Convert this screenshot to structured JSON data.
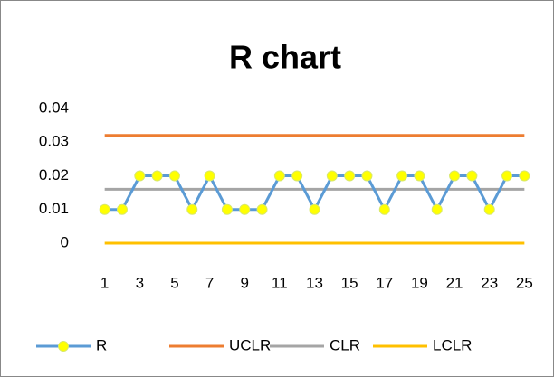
{
  "chart_data": {
    "type": "line",
    "title": "R chart",
    "categories": [
      "1",
      null,
      "3",
      null,
      "5",
      null,
      "7",
      null,
      "9",
      null,
      "11",
      null,
      "13",
      null,
      "15",
      null,
      "17",
      null,
      "19",
      null,
      "21",
      null,
      "23",
      null,
      "25"
    ],
    "series": [
      {
        "name": "R",
        "color": "#5b9bd5",
        "marker": "#ffff00",
        "values": [
          0.01,
          0.01,
          0.02,
          0.02,
          0.02,
          0.01,
          0.02,
          0.01,
          0.01,
          0.01,
          0.02,
          0.02,
          0.01,
          0.02,
          0.02,
          0.02,
          0.01,
          0.02,
          0.02,
          0.01,
          0.02,
          0.02,
          0.01,
          0.02,
          0.02
        ]
      },
      {
        "name": "UCLR",
        "color": "#ed7d31",
        "values": [
          0.032,
          0.032,
          0.032,
          0.032,
          0.032,
          0.032,
          0.032,
          0.032,
          0.032,
          0.032,
          0.032,
          0.032,
          0.032,
          0.032,
          0.032,
          0.032,
          0.032,
          0.032,
          0.032,
          0.032,
          0.032,
          0.032,
          0.032,
          0.032,
          0.032
        ]
      },
      {
        "name": "CLR",
        "color": "#a5a5a5",
        "values": [
          0.016,
          0.016,
          0.016,
          0.016,
          0.016,
          0.016,
          0.016,
          0.016,
          0.016,
          0.016,
          0.016,
          0.016,
          0.016,
          0.016,
          0.016,
          0.016,
          0.016,
          0.016,
          0.016,
          0.016,
          0.016,
          0.016,
          0.016,
          0.016,
          0.016
        ]
      },
      {
        "name": "LCLR",
        "color": "#ffc000",
        "values": [
          0,
          0,
          0,
          0,
          0,
          0,
          0,
          0,
          0,
          0,
          0,
          0,
          0,
          0,
          0,
          0,
          0,
          0,
          0,
          0,
          0,
          0,
          0,
          0,
          0
        ]
      }
    ],
    "ylim": [
      0,
      0.04
    ],
    "yticks": [
      0,
      0.01,
      0.02,
      0.03,
      0.04
    ],
    "grid": false,
    "legend": "bottom"
  }
}
